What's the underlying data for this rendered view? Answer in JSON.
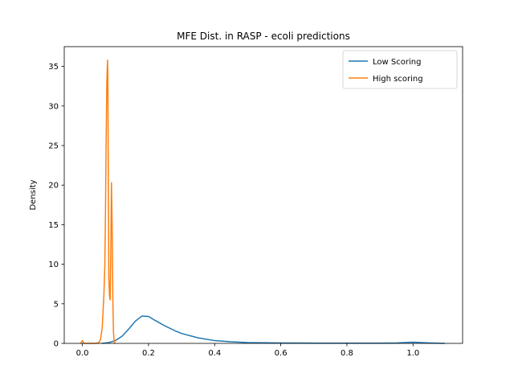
{
  "chart_data": {
    "type": "line",
    "title": "MFE Dist. in RASP - ecoli predictions",
    "xlabel": "",
    "ylabel": "Density",
    "xlim": [
      -0.0548,
      1.1498
    ],
    "ylim": [
      0,
      37.5
    ],
    "x_ticks": [
      0.0,
      0.2,
      0.4,
      0.6,
      0.8,
      1.0
    ],
    "x_tick_labels": [
      "0.0",
      "0.2",
      "0.4",
      "0.6",
      "0.8",
      "1.0"
    ],
    "y_ticks": [
      0,
      5,
      10,
      15,
      20,
      25,
      30,
      35
    ],
    "y_tick_labels": [
      "0",
      "5",
      "10",
      "15",
      "20",
      "25",
      "30",
      "35"
    ],
    "grid": false,
    "legend_position": "top-right",
    "series": [
      {
        "name": "Low Scoring",
        "color": "#1f77b4",
        "x": [
          0.06,
          0.08,
          0.1,
          0.12,
          0.14,
          0.16,
          0.18,
          0.2,
          0.22,
          0.25,
          0.28,
          0.3,
          0.35,
          0.4,
          0.45,
          0.5,
          0.6,
          0.7,
          0.8,
          0.9,
          0.95,
          1.0,
          1.05,
          1.095
        ],
        "y": [
          0.0,
          0.1,
          0.35,
          0.9,
          1.8,
          2.8,
          3.45,
          3.4,
          2.9,
          2.2,
          1.6,
          1.25,
          0.7,
          0.35,
          0.2,
          0.1,
          0.05,
          0.03,
          0.02,
          0.02,
          0.05,
          0.15,
          0.05,
          0.0
        ]
      },
      {
        "name": "High scoring",
        "color": "#ff7f0e",
        "x": [
          -0.005,
          0.0,
          0.005,
          0.01,
          0.02,
          0.03,
          0.04,
          0.05,
          0.055,
          0.06,
          0.065,
          0.068,
          0.07,
          0.072,
          0.074,
          0.076,
          0.077,
          0.078,
          0.08,
          0.082,
          0.084,
          0.086,
          0.088,
          0.09,
          0.092,
          0.094,
          0.096,
          0.098
        ],
        "y": [
          0.0,
          0.35,
          0.0,
          0.0,
          0.0,
          0.0,
          0.0,
          0.1,
          0.5,
          2.0,
          6.0,
          10.0,
          17.0,
          26.0,
          33.0,
          35.8,
          34.0,
          25.0,
          8.5,
          6.0,
          5.5,
          12.0,
          20.3,
          15.0,
          6.0,
          1.5,
          0.3,
          0.0
        ]
      }
    ]
  }
}
